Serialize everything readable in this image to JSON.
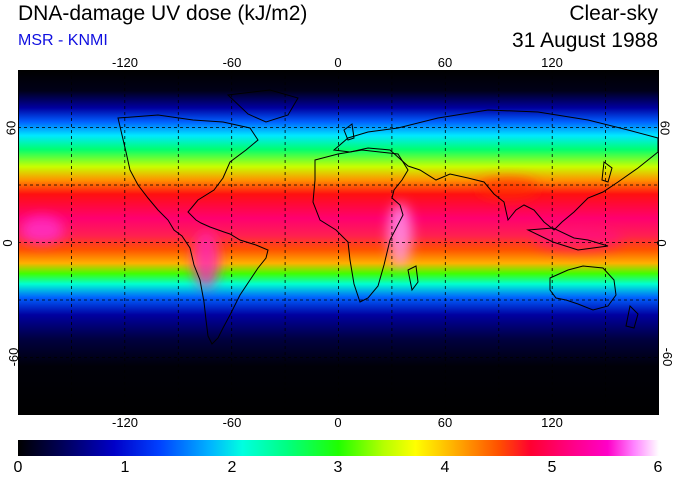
{
  "title": "DNA-damage UV dose (kJ/m2)",
  "subtitle": "MSR - KNMI",
  "condition": "Clear-sky",
  "date": "31 August 1988",
  "map": {
    "projection": "equirectangular",
    "lon_range": [
      -180,
      180
    ],
    "lat_range": [
      -90,
      90
    ],
    "lon_ticks": [
      "-120",
      "-60",
      "0",
      "60",
      "120"
    ],
    "lat_ticks": [
      "60",
      "0",
      "-60"
    ],
    "graticule": "dashed",
    "colormap": "black-blue-cyan-green-yellow-red-magenta-white"
  },
  "colorbar": {
    "min": 0,
    "max": 6,
    "labels": [
      "0",
      "1",
      "2",
      "3",
      "4",
      "5",
      "6"
    ]
  }
}
